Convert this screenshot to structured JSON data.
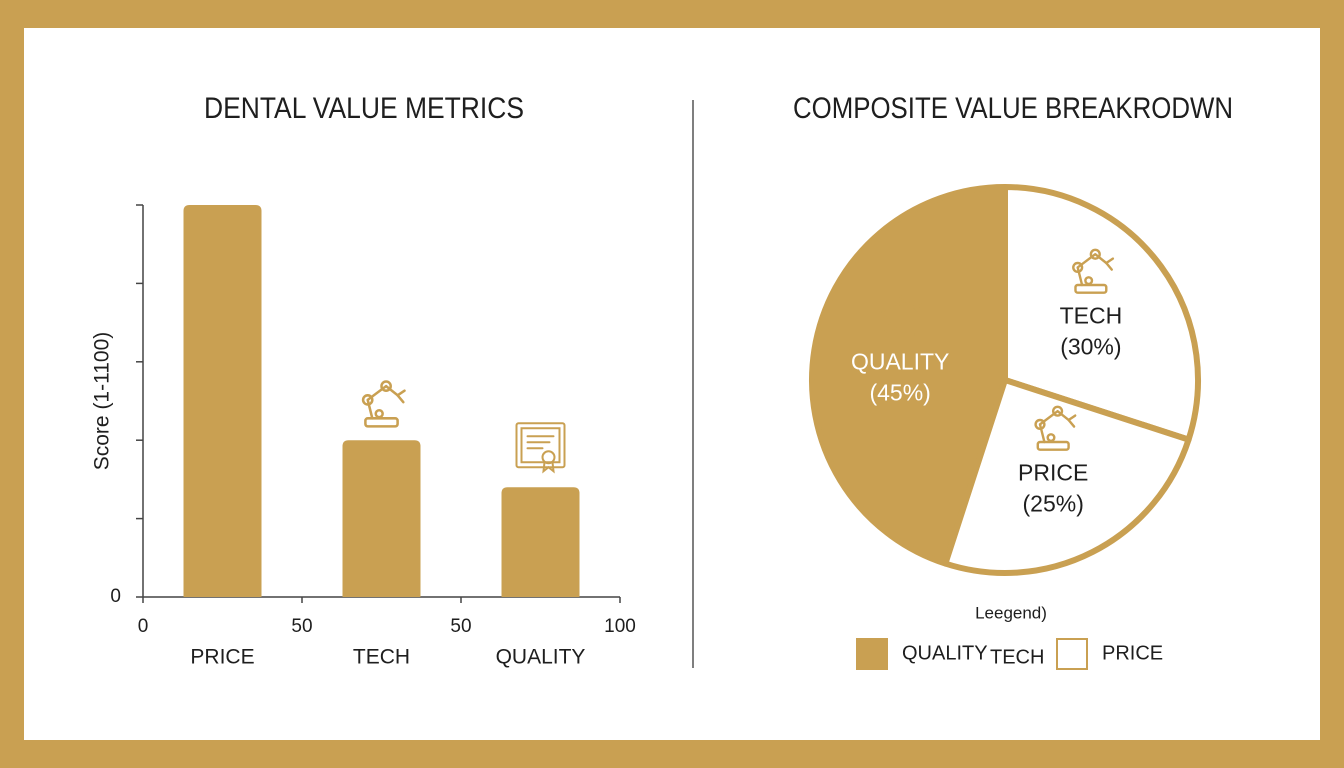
{
  "chart_data": [
    {
      "type": "bar",
      "title": "DENTAL VALUE METRICS",
      "y_label": "Score (1-1100)",
      "categories": [
        "PRICE",
        "TECH",
        "QUALITY"
      ],
      "values": [
        100,
        40,
        28
      ],
      "color": "#c9a052",
      "ylim": [
        0,
        100
      ],
      "yticks": [
        0,
        {
          "value": 20,
          "label": null
        },
        {
          "value": 40,
          "label": null
        },
        {
          "value": 60,
          "label": null
        },
        {
          "value": 80,
          "label": null
        },
        {
          "value": 100,
          "label": null
        }
      ],
      "x_axis_labels": [
        "0",
        "50",
        "50",
        "100"
      ]
    },
    {
      "type": "pie",
      "title": "COMPOSITE VALUE BREAKRODWN",
      "categories": [
        "QUALITY",
        "TECH",
        "PRICE"
      ],
      "values": [
        45,
        30,
        25
      ],
      "value_labels": [
        "(45%)",
        "(30%)",
        "(25%)"
      ],
      "colors": [
        "#c9a052",
        "#ffffff",
        "#ffffff"
      ],
      "stroke": "#c9a052",
      "legend_title": "Leegend)"
    }
  ]
}
